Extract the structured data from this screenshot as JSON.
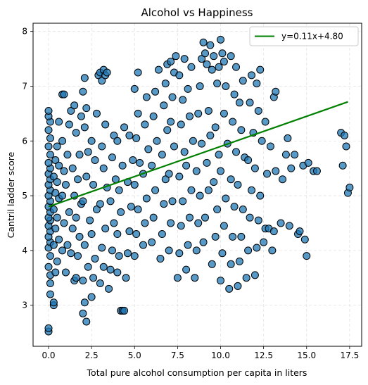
{
  "chart_data": {
    "type": "scatter",
    "title": "Alcohol vs Happiness",
    "xlabel": "Total pure alcohol consumption per capita in liters",
    "ylabel": "Cantril ladder score",
    "xlim": [
      -0.9,
      18.2
    ],
    "ylim": [
      2.25,
      8.15
    ],
    "xticks": [
      0.0,
      2.5,
      5.0,
      7.5,
      10.0,
      12.5,
      15.0,
      17.5
    ],
    "xtick_labels": [
      "0.0",
      "2.5",
      "5.0",
      "7.5",
      "10.0",
      "12.5",
      "15.0",
      "17.5"
    ],
    "yticks": [
      3,
      4,
      5,
      6,
      7,
      8
    ],
    "ytick_labels": [
      "3",
      "4",
      "5",
      "6",
      "7",
      "8"
    ],
    "grid": true,
    "legend_position": "top-right",
    "marker_color": "#1f77b4",
    "marker_edge_color": "#000000",
    "trend_color": "#008000",
    "series": [
      {
        "type": "scatter",
        "points": [
          [
            0.0,
            2.52
          ],
          [
            0.0,
            2.58
          ],
          [
            0.1,
            3.2
          ],
          [
            0.1,
            3.4
          ],
          [
            0.1,
            3.55
          ],
          [
            0.0,
            3.7
          ],
          [
            0.1,
            3.9
          ],
          [
            0.0,
            4.05
          ],
          [
            0.1,
            4.15
          ],
          [
            0.0,
            4.25
          ],
          [
            0.1,
            4.35
          ],
          [
            0.0,
            4.45
          ],
          [
            0.1,
            4.55
          ],
          [
            0.0,
            4.6
          ],
          [
            0.1,
            4.7
          ],
          [
            0.0,
            4.8
          ],
          [
            0.1,
            4.9
          ],
          [
            0.0,
            5.0
          ],
          [
            0.1,
            5.1
          ],
          [
            0.0,
            5.2
          ],
          [
            0.1,
            5.3
          ],
          [
            0.0,
            5.4
          ],
          [
            0.1,
            5.5
          ],
          [
            0.0,
            5.6
          ],
          [
            0.1,
            5.75
          ],
          [
            0.0,
            5.9
          ],
          [
            0.1,
            6.05
          ],
          [
            0.0,
            6.2
          ],
          [
            0.1,
            6.35
          ],
          [
            0.0,
            6.45
          ],
          [
            0.0,
            6.55
          ],
          [
            0.3,
            3.0
          ],
          [
            0.3,
            3.05
          ],
          [
            0.4,
            3.6
          ],
          [
            0.3,
            4.1
          ],
          [
            0.4,
            4.4
          ],
          [
            0.3,
            4.75
          ],
          [
            0.4,
            5.05
          ],
          [
            0.3,
            5.35
          ],
          [
            0.4,
            5.65
          ],
          [
            0.5,
            3.8
          ],
          [
            0.6,
            4.2
          ],
          [
            0.5,
            4.6
          ],
          [
            0.6,
            4.95
          ],
          [
            0.5,
            5.25
          ],
          [
            0.6,
            5.55
          ],
          [
            0.5,
            5.9
          ],
          [
            0.6,
            6.35
          ],
          [
            0.8,
            4.0
          ],
          [
            0.9,
            4.5
          ],
          [
            0.8,
            5.0
          ],
          [
            0.9,
            5.45
          ],
          [
            0.8,
            6.0
          ],
          [
            0.8,
            6.85
          ],
          [
            0.9,
            6.85
          ],
          [
            1.0,
            3.6
          ],
          [
            1.1,
            4.1
          ],
          [
            1.2,
            4.7
          ],
          [
            1.0,
            5.2
          ],
          [
            1.1,
            5.75
          ],
          [
            1.2,
            6.3
          ],
          [
            1.3,
            3.95
          ],
          [
            1.4,
            4.4
          ],
          [
            1.5,
            5.0
          ],
          [
            1.4,
            5.5
          ],
          [
            1.3,
            6.55
          ],
          [
            1.5,
            6.65
          ],
          [
            1.5,
            3.45
          ],
          [
            1.6,
            3.5
          ],
          [
            1.7,
            3.9
          ],
          [
            1.8,
            4.25
          ],
          [
            1.6,
            4.6
          ],
          [
            1.9,
            4.85
          ],
          [
            1.7,
            5.3
          ],
          [
            1.8,
            5.75
          ],
          [
            1.6,
            6.15
          ],
          [
            1.9,
            6.45
          ],
          [
            2.0,
            2.85
          ],
          [
            2.2,
            2.7
          ],
          [
            2.1,
            3.05
          ],
          [
            2.0,
            3.45
          ],
          [
            2.3,
            3.7
          ],
          [
            2.1,
            4.1
          ],
          [
            2.4,
            4.55
          ],
          [
            2.0,
            4.9
          ],
          [
            2.2,
            5.35
          ],
          [
            2.3,
            5.8
          ],
          [
            2.1,
            6.25
          ],
          [
            2.2,
            6.6
          ],
          [
            2.0,
            6.9
          ],
          [
            2.1,
            7.15
          ],
          [
            2.5,
            3.15
          ],
          [
            2.6,
            3.5
          ],
          [
            2.7,
            3.85
          ],
          [
            2.5,
            4.3
          ],
          [
            2.8,
            4.75
          ],
          [
            2.6,
            5.2
          ],
          [
            2.7,
            5.65
          ],
          [
            2.5,
            6.0
          ],
          [
            2.8,
            6.5
          ],
          [
            2.9,
            7.2
          ],
          [
            3.0,
            7.25
          ],
          [
            3.1,
            7.1
          ],
          [
            3.2,
            7.3
          ],
          [
            3.3,
            7.2
          ],
          [
            3.4,
            7.25
          ],
          [
            3.0,
            3.4
          ],
          [
            3.2,
            3.7
          ],
          [
            3.1,
            4.05
          ],
          [
            3.3,
            4.4
          ],
          [
            3.0,
            4.85
          ],
          [
            3.4,
            5.15
          ],
          [
            3.2,
            5.5
          ],
          [
            3.1,
            5.9
          ],
          [
            3.3,
            6.3
          ],
          [
            3.5,
            3.3
          ],
          [
            3.6,
            3.65
          ],
          [
            3.7,
            4.0
          ],
          [
            3.8,
            4.5
          ],
          [
            3.6,
            4.9
          ],
          [
            3.9,
            5.3
          ],
          [
            3.7,
            5.7
          ],
          [
            3.8,
            6.1
          ],
          [
            4.0,
            3.6
          ],
          [
            4.1,
            3.9
          ],
          [
            4.2,
            2.9
          ],
          [
            4.3,
            2.9
          ],
          [
            4.4,
            2.9
          ],
          [
            4.0,
            4.3
          ],
          [
            4.2,
            4.7
          ],
          [
            4.1,
            5.1
          ],
          [
            4.3,
            5.55
          ],
          [
            4.0,
            6.0
          ],
          [
            4.4,
            6.25
          ],
          [
            4.5,
            3.5
          ],
          [
            4.6,
            3.95
          ],
          [
            4.7,
            4.35
          ],
          [
            4.8,
            4.8
          ],
          [
            4.6,
            5.25
          ],
          [
            4.9,
            5.65
          ],
          [
            4.7,
            6.1
          ],
          [
            5.0,
            3.9
          ],
          [
            5.1,
            4.3
          ],
          [
            5.2,
            4.75
          ],
          [
            5.0,
            5.2
          ],
          [
            5.3,
            5.6
          ],
          [
            5.1,
            6.05
          ],
          [
            5.2,
            6.5
          ],
          [
            5.0,
            6.95
          ],
          [
            5.2,
            7.25
          ],
          [
            5.5,
            4.1
          ],
          [
            5.6,
            4.5
          ],
          [
            5.7,
            4.95
          ],
          [
            5.5,
            5.4
          ],
          [
            5.8,
            5.85
          ],
          [
            5.6,
            6.3
          ],
          [
            5.7,
            6.8
          ],
          [
            6.0,
            4.15
          ],
          [
            6.1,
            4.6
          ],
          [
            6.2,
            5.1
          ],
          [
            6.0,
            5.55
          ],
          [
            6.3,
            6.0
          ],
          [
            6.1,
            6.45
          ],
          [
            6.2,
            6.9
          ],
          [
            6.4,
            7.3
          ],
          [
            6.5,
            3.85
          ],
          [
            6.6,
            4.3
          ],
          [
            6.7,
            4.85
          ],
          [
            6.8,
            5.3
          ],
          [
            6.6,
            5.75
          ],
          [
            6.9,
            6.2
          ],
          [
            6.7,
            6.65
          ],
          [
            6.8,
            7.05
          ],
          [
            6.9,
            7.4
          ],
          [
            7.0,
            4.0
          ],
          [
            7.1,
            4.5
          ],
          [
            7.2,
            4.9
          ],
          [
            7.0,
            5.4
          ],
          [
            7.3,
            5.9
          ],
          [
            7.1,
            6.35
          ],
          [
            7.2,
            6.8
          ],
          [
            7.3,
            7.25
          ],
          [
            7.1,
            7.45
          ],
          [
            7.4,
            7.55
          ],
          [
            7.5,
            3.5
          ],
          [
            7.6,
            3.95
          ],
          [
            7.7,
            4.45
          ],
          [
            7.8,
            4.9
          ],
          [
            7.6,
            5.35
          ],
          [
            7.9,
            5.8
          ],
          [
            7.7,
            6.3
          ],
          [
            7.8,
            6.75
          ],
          [
            7.6,
            7.2
          ],
          [
            7.9,
            7.5
          ],
          [
            8.0,
            3.65
          ],
          [
            8.1,
            4.1
          ],
          [
            8.2,
            4.6
          ],
          [
            8.3,
            5.1
          ],
          [
            8.0,
            5.55
          ],
          [
            8.4,
            6.0
          ],
          [
            8.2,
            6.45
          ],
          [
            8.1,
            6.95
          ],
          [
            8.3,
            7.35
          ],
          [
            8.5,
            3.5
          ],
          [
            8.6,
            4.0
          ],
          [
            8.7,
            4.5
          ],
          [
            8.8,
            5.0
          ],
          [
            8.6,
            5.45
          ],
          [
            8.9,
            5.95
          ],
          [
            8.7,
            6.5
          ],
          [
            8.8,
            7.0
          ],
          [
            8.9,
            7.5
          ],
          [
            9.0,
            7.8
          ],
          [
            9.1,
            7.6
          ],
          [
            9.2,
            7.4
          ],
          [
            9.0,
            4.15
          ],
          [
            9.1,
            4.6
          ],
          [
            9.3,
            5.1
          ],
          [
            9.2,
            5.6
          ],
          [
            9.4,
            6.1
          ],
          [
            9.3,
            6.55
          ],
          [
            9.5,
            7.3
          ],
          [
            9.6,
            7.55
          ],
          [
            9.4,
            7.75
          ],
          [
            9.5,
            3.75
          ],
          [
            9.7,
            4.25
          ],
          [
            9.8,
            4.75
          ],
          [
            9.6,
            5.25
          ],
          [
            9.9,
            5.75
          ],
          [
            9.7,
            6.25
          ],
          [
            9.8,
            7.05
          ],
          [
            9.9,
            7.35
          ],
          [
            10.0,
            7.85
          ],
          [
            10.1,
            7.6
          ],
          [
            10.2,
            7.45
          ],
          [
            10.0,
            3.45
          ],
          [
            10.1,
            3.95
          ],
          [
            10.2,
            4.45
          ],
          [
            10.3,
            4.95
          ],
          [
            10.0,
            5.45
          ],
          [
            10.4,
            5.95
          ],
          [
            10.2,
            6.5
          ],
          [
            10.3,
            7.0
          ],
          [
            10.5,
            3.3
          ],
          [
            10.6,
            3.75
          ],
          [
            10.7,
            4.25
          ],
          [
            10.8,
            4.8
          ],
          [
            10.6,
            5.3
          ],
          [
            10.9,
            5.8
          ],
          [
            10.7,
            6.35
          ],
          [
            10.8,
            6.85
          ],
          [
            10.9,
            7.35
          ],
          [
            10.6,
            7.55
          ],
          [
            11.0,
            3.35
          ],
          [
            11.1,
            3.8
          ],
          [
            11.2,
            4.25
          ],
          [
            11.3,
            4.75
          ],
          [
            11.0,
            5.2
          ],
          [
            11.4,
            5.7
          ],
          [
            11.2,
            6.2
          ],
          [
            11.1,
            6.7
          ],
          [
            11.3,
            7.1
          ],
          [
            11.5,
            3.5
          ],
          [
            11.6,
            4.0
          ],
          [
            11.7,
            4.6
          ],
          [
            11.8,
            5.1
          ],
          [
            11.6,
            5.65
          ],
          [
            11.9,
            6.15
          ],
          [
            11.7,
            6.7
          ],
          [
            11.8,
            7.2
          ],
          [
            12.0,
            3.55
          ],
          [
            12.1,
            4.05
          ],
          [
            12.2,
            4.55
          ],
          [
            12.3,
            5.0
          ],
          [
            12.0,
            5.5
          ],
          [
            12.4,
            6.0
          ],
          [
            12.2,
            6.55
          ],
          [
            12.1,
            7.05
          ],
          [
            12.3,
            7.3
          ],
          [
            12.5,
            4.15
          ],
          [
            12.6,
            4.4
          ],
          [
            12.8,
            4.4
          ],
          [
            12.7,
            5.4
          ],
          [
            12.9,
            5.9
          ],
          [
            12.6,
            6.35
          ],
          [
            13.0,
            4.0
          ],
          [
            13.1,
            4.35
          ],
          [
            13.2,
            5.45
          ],
          [
            13.1,
            6.8
          ],
          [
            13.2,
            6.9
          ],
          [
            13.5,
            4.5
          ],
          [
            13.6,
            5.3
          ],
          [
            13.8,
            5.75
          ],
          [
            13.9,
            6.05
          ],
          [
            14.0,
            4.45
          ],
          [
            14.1,
            5.5
          ],
          [
            14.3,
            5.75
          ],
          [
            14.5,
            4.3
          ],
          [
            14.6,
            4.35
          ],
          [
            14.8,
            5.55
          ],
          [
            14.9,
            4.2
          ],
          [
            15.0,
            3.9
          ],
          [
            15.1,
            5.6
          ],
          [
            15.4,
            5.45
          ],
          [
            15.6,
            5.45
          ],
          [
            17.0,
            6.15
          ],
          [
            17.1,
            5.55
          ],
          [
            17.2,
            6.1
          ],
          [
            17.3,
            5.9
          ],
          [
            17.4,
            5.05
          ],
          [
            17.5,
            5.15
          ]
        ]
      },
      {
        "type": "line",
        "name": "y=0.11x+4.80",
        "slope": 0.11,
        "intercept": 4.8,
        "x_range": [
          0.0,
          17.4
        ]
      }
    ]
  }
}
